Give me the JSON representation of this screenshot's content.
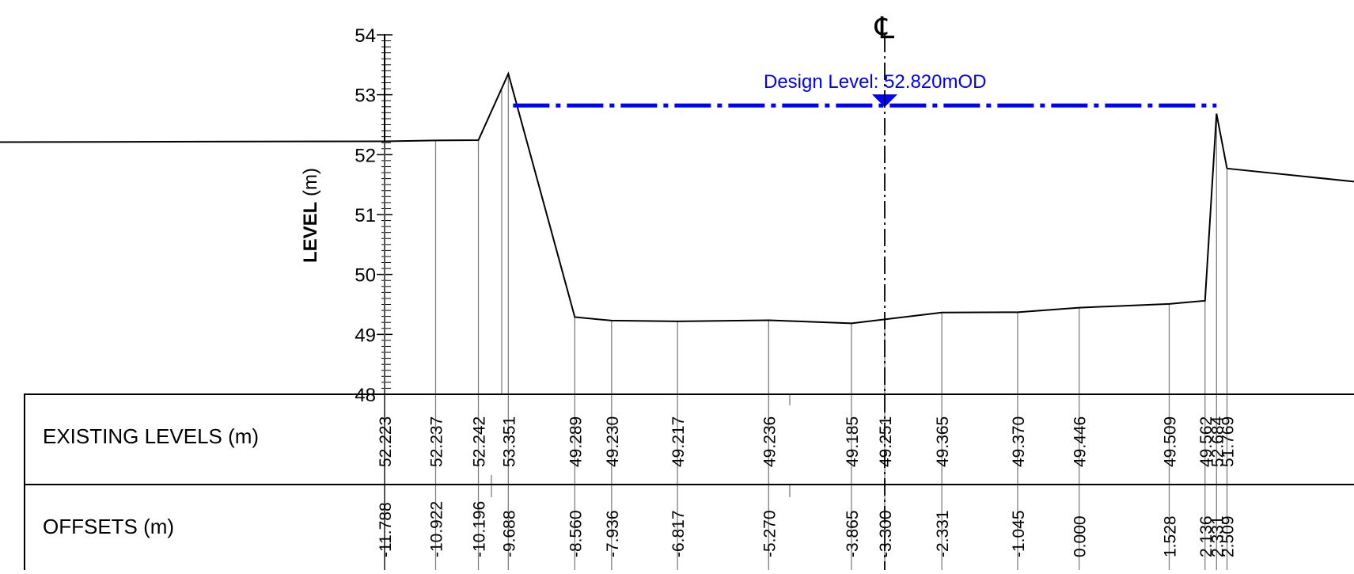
{
  "chart_data": {
    "type": "line",
    "ylabel_bold": "LEVEL",
    "ylabel_unit": " (m)",
    "ylim": [
      48,
      54
    ],
    "yticks": [
      "48",
      "49",
      "50",
      "51",
      "52",
      "53",
      "54"
    ],
    "centerline_symbol": "℄",
    "design_level": {
      "label": "Design Level: 52.820mOD",
      "value": 52.82,
      "color": "#0000ff"
    },
    "series": [
      {
        "offsets": [
          -11.788,
          -10.922,
          -10.196,
          -9.688,
          -8.56,
          -7.936,
          -6.817,
          -5.27,
          -3.865,
          -3.3,
          -2.331,
          -1.045,
          0.0,
          1.528,
          2.136,
          2.331,
          2.509
        ],
        "levels": [
          52.223,
          52.237,
          52.242,
          53.351,
          49.289,
          49.23,
          49.217,
          49.236,
          49.185,
          49.251,
          49.365,
          49.37,
          49.446,
          49.509,
          49.562,
          52.684,
          51.769
        ]
      }
    ],
    "table": {
      "rows": [
        {
          "title": "EXISTING LEVELS (m)",
          "values": [
            "52.223",
            "52.237",
            "52.242",
            "53.351",
            "49.289",
            "49.230",
            "49.217",
            "49.236",
            "49.185",
            "49.251",
            "49.365",
            "49.370",
            "49.446",
            "49.509",
            "49.562",
            "52.684",
            "51.769"
          ]
        },
        {
          "title": "OFFSETS (m)",
          "values": [
            "-11.788",
            "-10.922",
            "-10.196",
            "-9.688",
            "-8.560",
            "-7.936",
            "-6.817",
            "-5.270",
            "-3.865",
            "-3.300",
            "-2.331",
            "-1.045",
            "0.000",
            "1.528",
            "2.136",
            "2.331",
            "2.509"
          ]
        }
      ]
    }
  }
}
